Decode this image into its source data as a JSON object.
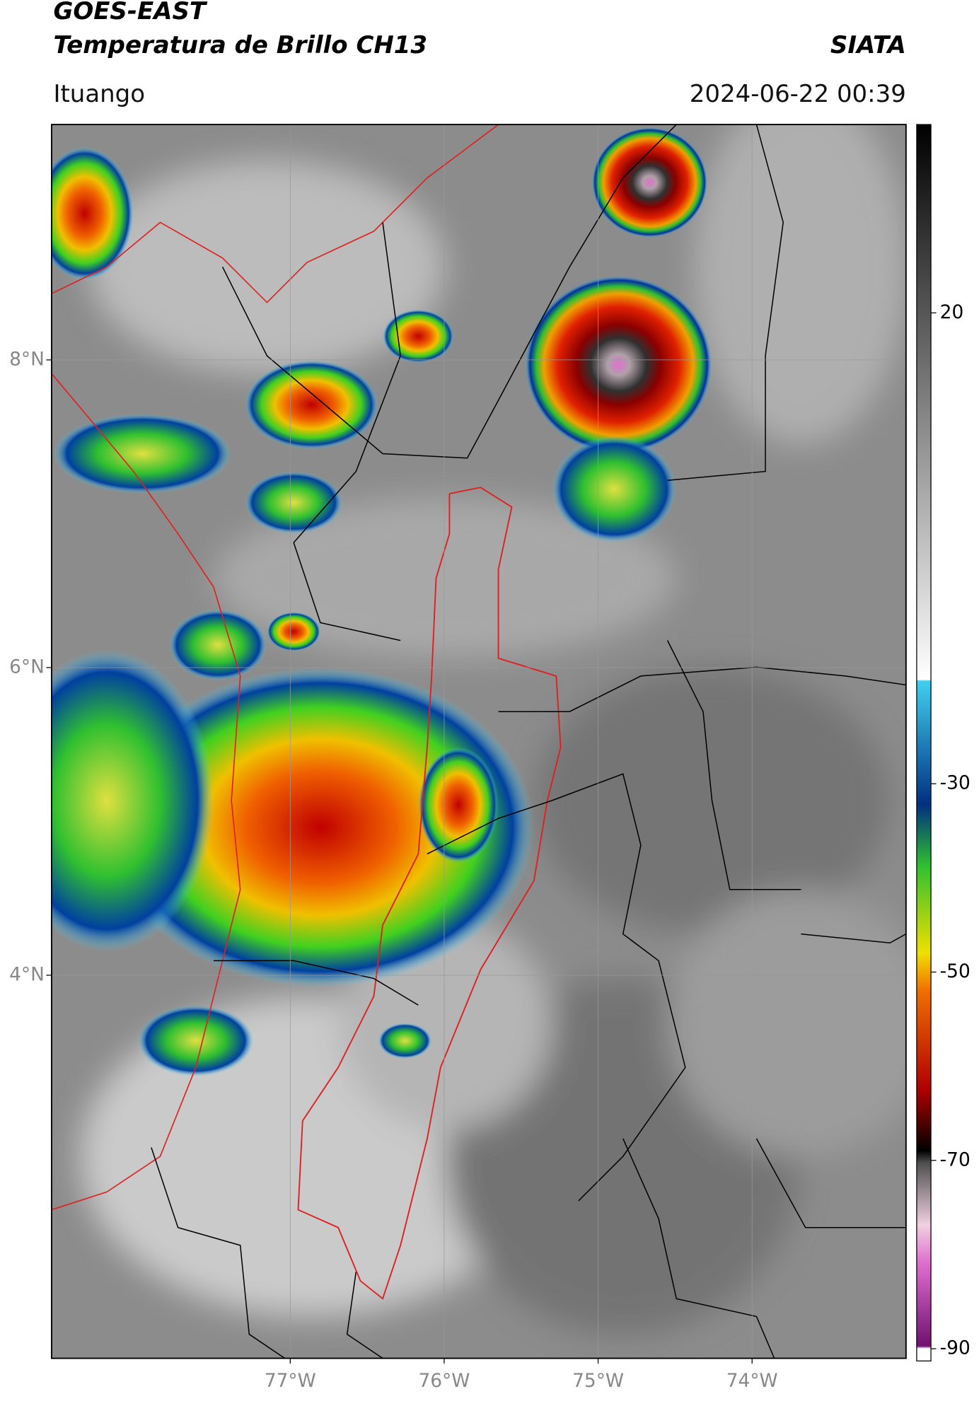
{
  "header": {
    "title_line1": "GOES-EAST",
    "title_line2": "Temperatura de Brillo CH13",
    "agency": "SIATA",
    "location": "Ituango",
    "timestamp": "2024-06-22 00:39"
  },
  "map": {
    "xlim": [
      -78.55,
      -73.0
    ],
    "ylim": [
      1.51,
      9.53
    ],
    "grid": true,
    "xticks": [
      {
        "value": -77,
        "label": "77°W"
      },
      {
        "value": -76,
        "label": "76°W"
      },
      {
        "value": -75,
        "label": "75°W"
      },
      {
        "value": -74,
        "label": "74°W"
      }
    ],
    "yticks": [
      {
        "value": 8,
        "label": "8°N"
      },
      {
        "value": 6,
        "label": "6°N"
      },
      {
        "value": 4,
        "label": "4°N"
      }
    ]
  },
  "colorbar": {
    "clim": [
      -91.3,
      40
    ],
    "ticks": [
      20,
      -30,
      -50,
      -70,
      -90
    ]
  }
}
